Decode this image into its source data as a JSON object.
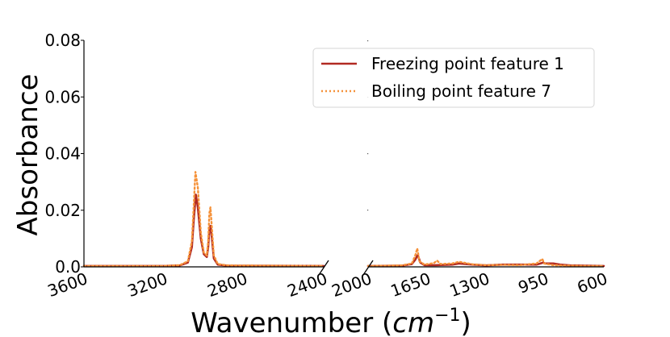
{
  "chart_data": {
    "type": "line",
    "title": "",
    "xlabel": "Wavenumber",
    "xlabel_unit_base": "cm",
    "xlabel_unit_exp": "−1",
    "ylabel": "Absorbance",
    "broken_x_axis": true,
    "x_reversed": true,
    "segments": [
      {
        "xlim": [
          3600,
          2400
        ],
        "ticks": [
          3600,
          3200,
          2800,
          2400
        ],
        "tick_labels": [
          "3600",
          "3200",
          "2800",
          "2400"
        ]
      },
      {
        "xlim": [
          2000,
          600
        ],
        "ticks": [
          2000,
          1650,
          1300,
          950,
          600
        ],
        "tick_labels": [
          "2000",
          "1650",
          "1300",
          "950",
          "600"
        ]
      }
    ],
    "ylim": [
      0,
      0.08
    ],
    "yticks": [
      0.0,
      0.02,
      0.04,
      0.06,
      0.08
    ],
    "ytick_labels": [
      "0.0",
      "0.02",
      "0.04",
      "0.06",
      "0.08"
    ],
    "legend_position": "top-right",
    "series": [
      {
        "name": "Freezing point feature 1",
        "color": "#b22a22",
        "style": "solid",
        "points": [
          [
            3600,
            0.0003
          ],
          [
            3200,
            0.0003
          ],
          [
            3120,
            0.0005
          ],
          [
            3080,
            0.0015
          ],
          [
            3060,
            0.007
          ],
          [
            3050,
            0.017
          ],
          [
            3040,
            0.0255
          ],
          [
            3030,
            0.021
          ],
          [
            3015,
            0.01
          ],
          [
            3000,
            0.0045
          ],
          [
            2985,
            0.0035
          ],
          [
            2978,
            0.007
          ],
          [
            2972,
            0.0135
          ],
          [
            2966,
            0.0145
          ],
          [
            2958,
            0.009
          ],
          [
            2950,
            0.003
          ],
          [
            2930,
            0.0008
          ],
          [
            2880,
            0.0004
          ],
          [
            2400,
            0.0003
          ],
          [
            2000,
            0.0003
          ],
          [
            1800,
            0.0004
          ],
          [
            1740,
            0.001
          ],
          [
            1720,
            0.0025
          ],
          [
            1705,
            0.0042
          ],
          [
            1690,
            0.0015
          ],
          [
            1665,
            0.0006
          ],
          [
            1600,
            0.0006
          ],
          [
            1500,
            0.0008
          ],
          [
            1460,
            0.0012
          ],
          [
            1380,
            0.0008
          ],
          [
            1300,
            0.0005
          ],
          [
            1200,
            0.0008
          ],
          [
            1100,
            0.0008
          ],
          [
            1000,
            0.0008
          ],
          [
            960,
            0.0015
          ],
          [
            950,
            0.0012
          ],
          [
            900,
            0.0012
          ],
          [
            860,
            0.0008
          ],
          [
            800,
            0.0005
          ],
          [
            700,
            0.0004
          ],
          [
            600,
            0.0003
          ]
        ]
      },
      {
        "name": "Boiling point feature 7",
        "color": "#f5923a",
        "style": "dotted",
        "points": [
          [
            3600,
            0.0003
          ],
          [
            3200,
            0.0003
          ],
          [
            3120,
            0.0006
          ],
          [
            3080,
            0.002
          ],
          [
            3060,
            0.009
          ],
          [
            3050,
            0.022
          ],
          [
            3042,
            0.0335
          ],
          [
            3030,
            0.028
          ],
          [
            3015,
            0.012
          ],
          [
            3000,
            0.005
          ],
          [
            2985,
            0.004
          ],
          [
            2978,
            0.009
          ],
          [
            2972,
            0.019
          ],
          [
            2967,
            0.021
          ],
          [
            2958,
            0.012
          ],
          [
            2950,
            0.004
          ],
          [
            2930,
            0.001
          ],
          [
            2880,
            0.0005
          ],
          [
            2400,
            0.0003
          ],
          [
            2000,
            0.0003
          ],
          [
            1800,
            0.0005
          ],
          [
            1740,
            0.0012
          ],
          [
            1720,
            0.004
          ],
          [
            1708,
            0.0065
          ],
          [
            1695,
            0.002
          ],
          [
            1665,
            0.0008
          ],
          [
            1610,
            0.0013
          ],
          [
            1590,
            0.0022
          ],
          [
            1570,
            0.001
          ],
          [
            1500,
            0.0012
          ],
          [
            1460,
            0.0018
          ],
          [
            1380,
            0.0009
          ],
          [
            1300,
            0.0006
          ],
          [
            1200,
            0.0007
          ],
          [
            1100,
            0.0006
          ],
          [
            1000,
            0.0012
          ],
          [
            965,
            0.0028
          ],
          [
            955,
            0.0012
          ],
          [
            900,
            0.0006
          ],
          [
            800,
            0.0004
          ],
          [
            700,
            0.0003
          ],
          [
            600,
            0.0003
          ]
        ]
      }
    ]
  }
}
